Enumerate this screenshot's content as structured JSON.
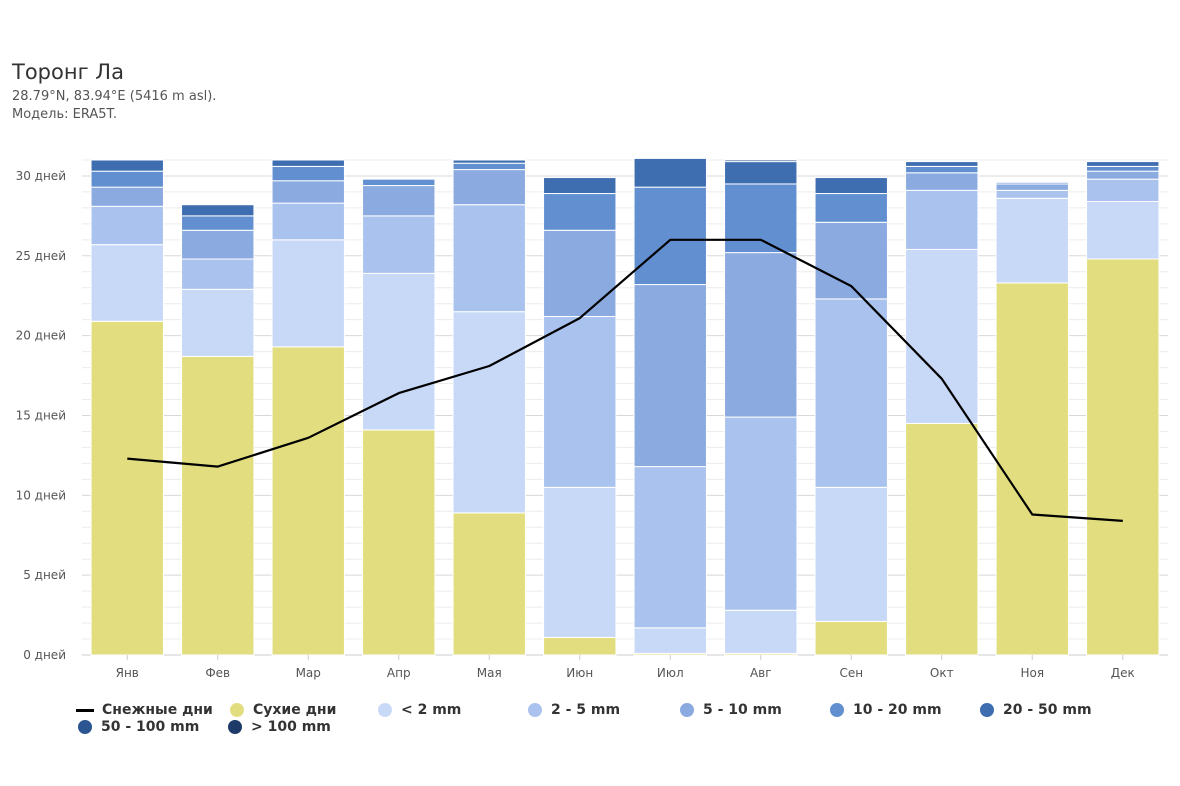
{
  "header": {
    "title": "Торонг Ла",
    "coords": "28.79°N, 83.94°E (5416 m asl).",
    "model": "Модель: ERA5T."
  },
  "chart_data": {
    "type": "bar",
    "stacked": true,
    "categories": [
      "Янв",
      "Фев",
      "Мар",
      "Апр",
      "Мая",
      "Июн",
      "Июл",
      "Авг",
      "Сен",
      "Окт",
      "Ноя",
      "Дек"
    ],
    "y_ticks": [
      "0 дней",
      "5 дней",
      "10 дней",
      "15 дней",
      "20 дней",
      "25 дней",
      "30 дней"
    ],
    "ylim": [
      0,
      31
    ],
    "grid": true,
    "legend_position": "bottom-left",
    "series": [
      {
        "name": "Сухие дни",
        "color": "#e2de80",
        "values": [
          20.9,
          18.7,
          19.3,
          14.1,
          8.9,
          1.1,
          0.1,
          0.1,
          2.1,
          14.5,
          23.3,
          24.8
        ]
      },
      {
        "name": "< 2 mm",
        "color": "#c8d9f8",
        "values": [
          4.8,
          4.2,
          6.7,
          9.8,
          12.6,
          9.4,
          1.6,
          2.7,
          8.4,
          10.9,
          5.3,
          3.6
        ]
      },
      {
        "name": "2 - 5 mm",
        "color": "#aac3ee",
        "values": [
          2.4,
          1.9,
          2.3,
          3.6,
          6.7,
          10.7,
          10.1,
          12.1,
          11.8,
          3.7,
          0.5,
          1.4
        ]
      },
      {
        "name": "5 - 10 mm",
        "color": "#8aaae0",
        "values": [
          1.2,
          1.8,
          1.4,
          1.9,
          2.2,
          5.4,
          11.4,
          10.3,
          4.8,
          1.1,
          0.4,
          0.5
        ]
      },
      {
        "name": "10 - 20 mm",
        "color": "#628fd0",
        "values": [
          1.0,
          0.9,
          0.9,
          0.4,
          0.4,
          2.3,
          6.1,
          4.3,
          1.8,
          0.4,
          0.1,
          0.3
        ]
      },
      {
        "name": "20 - 50 mm",
        "color": "#3e6db0",
        "values": [
          0.7,
          0.7,
          0.4,
          0.0,
          0.2,
          1.0,
          1.8,
          1.4,
          1.0,
          0.3,
          0.0,
          0.3
        ]
      },
      {
        "name": "50 - 100 mm",
        "color": "#2b5590",
        "values": [
          0.0,
          0.0,
          0.0,
          0.0,
          0.0,
          0.0,
          0.0,
          0.1,
          0.0,
          0.0,
          0.0,
          0.0
        ]
      },
      {
        "name": "> 100 mm",
        "color": "#1e3a68",
        "values": [
          0,
          0,
          0,
          0,
          0,
          0,
          0,
          0,
          0,
          0,
          0,
          0
        ]
      }
    ],
    "line": {
      "name": "Снежные дни",
      "color": "#000000",
      "values": [
        12.3,
        11.8,
        13.6,
        16.4,
        18.1,
        21.1,
        26.0,
        26.0,
        23.1,
        17.3,
        8.8,
        8.4
      ]
    },
    "legend": [
      {
        "label": "Снежные дни",
        "kind": "line",
        "color": "#000000"
      },
      {
        "label": "Сухие дни",
        "kind": "dot",
        "color": "#e2de80"
      },
      {
        "label": "< 2 mm",
        "kind": "dot",
        "color": "#c8d9f8"
      },
      {
        "label": "2 - 5 mm",
        "kind": "dot",
        "color": "#aac3ee"
      },
      {
        "label": "5 - 10 mm",
        "kind": "dot",
        "color": "#8aaae0"
      },
      {
        "label": "10 - 20 mm",
        "kind": "dot",
        "color": "#628fd0"
      },
      {
        "label": "20 - 50 mm",
        "kind": "dot",
        "color": "#3e6db0"
      },
      {
        "label": "50 - 100 mm",
        "kind": "dot",
        "color": "#2b5590"
      },
      {
        "label": "> 100 mm",
        "kind": "dot",
        "color": "#1e3a68"
      }
    ]
  }
}
